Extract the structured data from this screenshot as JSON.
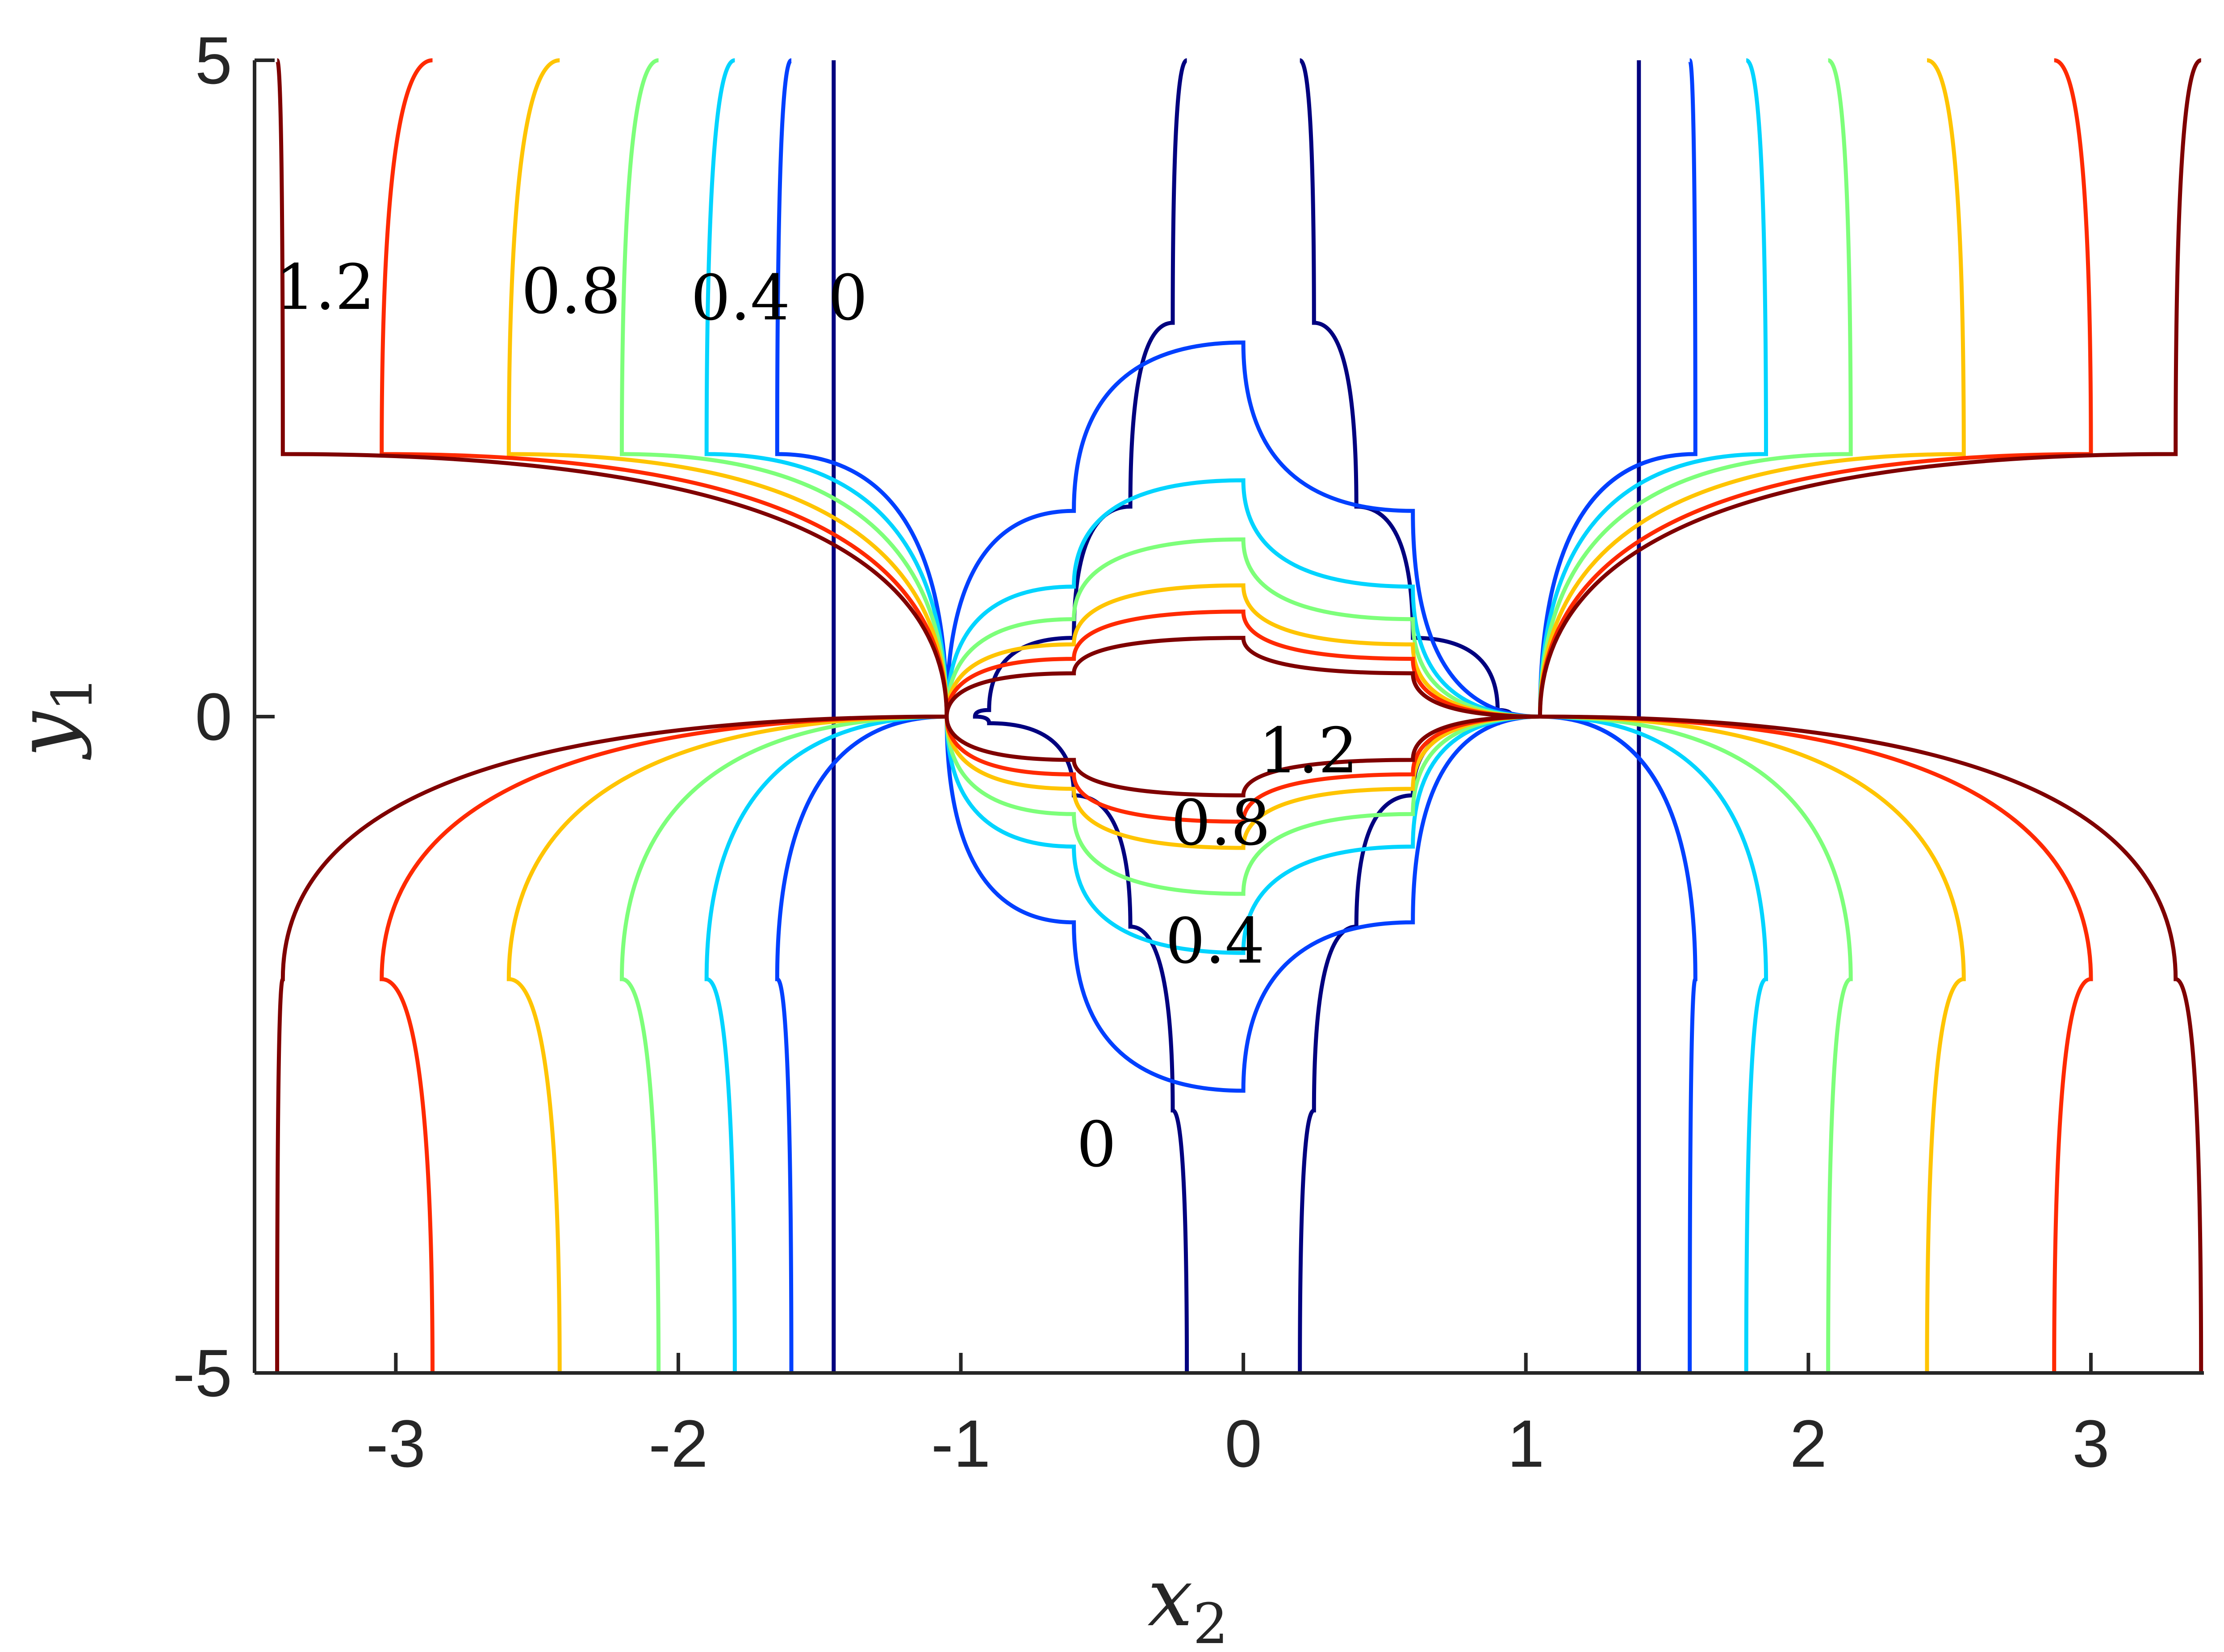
{
  "chart_data": {
    "type": "line",
    "title": "",
    "xlabel": "x",
    "xlabel_sub": "2",
    "ylabel": "y",
    "ylabel_sub": "1",
    "xlim": [
      -3.5,
      3.4
    ],
    "ylim": [
      -5,
      5
    ],
    "xticks": [
      -3,
      -2,
      -1,
      0,
      1,
      2,
      3
    ],
    "xtick_labels": [
      "-3",
      "-2",
      "-1",
      "0",
      "1",
      "2",
      "3"
    ],
    "yticks": [
      -5,
      0,
      5
    ],
    "ytick_labels": [
      "-5",
      "0",
      "5"
    ],
    "grid": false,
    "legend": "none",
    "levels": [
      0,
      0.2,
      0.4,
      0.6,
      0.8,
      1.0,
      1.2
    ],
    "colors": [
      "#00007f",
      "#0040ff",
      "#00d4ff",
      "#7dff7a",
      "#ffc400",
      "#ff2a00",
      "#7f0000"
    ],
    "series": [
      {
        "level": 0,
        "outer_left": [
          [
            -1.45,
            -5
          ],
          [
            -1.45,
            5
          ]
        ],
        "outer_right": [
          [
            1.4,
            -5
          ],
          [
            1.4,
            5
          ]
        ],
        "center": [
          [
            -0.2,
            -5
          ],
          [
            -0.25,
            -3
          ],
          [
            -0.4,
            -1.6
          ],
          [
            -0.6,
            -0.6
          ],
          [
            -0.9,
            -0.05
          ],
          [
            -0.95,
            0
          ],
          [
            -0.9,
            0.05
          ],
          [
            -0.6,
            0.6
          ],
          [
            -0.4,
            1.6
          ],
          [
            -0.25,
            3
          ],
          [
            -0.2,
            5
          ]
        ]
      },
      {
        "level": 0.2,
        "outer_left": [
          [
            -1.6,
            -5
          ],
          [
            -1.65,
            -2
          ],
          [
            -1.05,
            0
          ],
          [
            -1.65,
            2
          ],
          [
            -1.6,
            5
          ]
        ],
        "outer_right": [
          [
            1.58,
            -5
          ],
          [
            1.6,
            -2
          ],
          [
            1.05,
            0
          ],
          [
            1.6,
            2
          ],
          [
            1.58,
            5
          ]
        ],
        "center_peak": 2.85
      },
      {
        "level": 0.4,
        "outer_left": [
          [
            -1.8,
            -5
          ],
          [
            -1.9,
            -2
          ],
          [
            -1.05,
            0
          ],
          [
            -1.9,
            2
          ],
          [
            -1.8,
            5
          ]
        ],
        "outer_right": [
          [
            1.78,
            -5
          ],
          [
            1.85,
            -2
          ],
          [
            1.05,
            0
          ],
          [
            1.85,
            2
          ],
          [
            1.78,
            5
          ]
        ],
        "center_peak": 1.8
      },
      {
        "level": 0.6,
        "outer_left": [
          [
            -2.07,
            -5
          ],
          [
            -2.2,
            -2
          ],
          [
            -1.05,
            0
          ],
          [
            -2.2,
            2
          ],
          [
            -2.07,
            5
          ]
        ],
        "outer_right": [
          [
            2.07,
            -5
          ],
          [
            2.15,
            -2
          ],
          [
            1.05,
            0
          ],
          [
            2.15,
            2
          ],
          [
            2.07,
            5
          ]
        ],
        "center_peak": 1.35
      },
      {
        "level": 0.8,
        "outer_left": [
          [
            -2.42,
            -5
          ],
          [
            -2.6,
            -2
          ],
          [
            -1.05,
            0
          ],
          [
            -2.6,
            2
          ],
          [
            -2.42,
            5
          ]
        ],
        "outer_right": [
          [
            2.42,
            -5
          ],
          [
            2.55,
            -2
          ],
          [
            1.05,
            0
          ],
          [
            2.55,
            2
          ],
          [
            2.42,
            5
          ]
        ],
        "center_peak": 1.0
      },
      {
        "level": 1.0,
        "outer_left": [
          [
            -2.87,
            -5
          ],
          [
            -3.05,
            -2
          ],
          [
            -1.05,
            0
          ],
          [
            -3.05,
            2
          ],
          [
            -2.87,
            5
          ]
        ],
        "outer_right": [
          [
            2.87,
            -5
          ],
          [
            3.0,
            -2
          ],
          [
            1.05,
            0
          ],
          [
            3.0,
            2
          ],
          [
            2.87,
            5
          ]
        ],
        "center_peak": 0.8
      },
      {
        "level": 1.2,
        "outer_left": [
          [
            -3.42,
            -5
          ],
          [
            -3.4,
            -2
          ],
          [
            -1.05,
            0
          ],
          [
            -3.4,
            2
          ],
          [
            -3.42,
            5
          ]
        ],
        "outer_right": [
          [
            3.39,
            -5
          ],
          [
            3.3,
            -2
          ],
          [
            1.05,
            0
          ],
          [
            3.3,
            2
          ],
          [
            3.39,
            5
          ]
        ],
        "center_peak": 0.6
      }
    ],
    "annotations": [
      {
        "text": "1.2",
        "x": -3.25,
        "y": 3.23
      },
      {
        "text": "0.8",
        "x": -2.38,
        "y": 3.2
      },
      {
        "text": "0.4",
        "x": -1.78,
        "y": 3.15
      },
      {
        "text": "0",
        "x": -1.4,
        "y": 3.15
      },
      {
        "text": "1.2",
        "x": 0.23,
        "y": -0.3
      },
      {
        "text": "0.8",
        "x": -0.08,
        "y": -0.85
      },
      {
        "text": "0.4",
        "x": -0.1,
        "y": -1.75
      },
      {
        "text": "0",
        "x": -0.52,
        "y": -3.3
      }
    ]
  }
}
